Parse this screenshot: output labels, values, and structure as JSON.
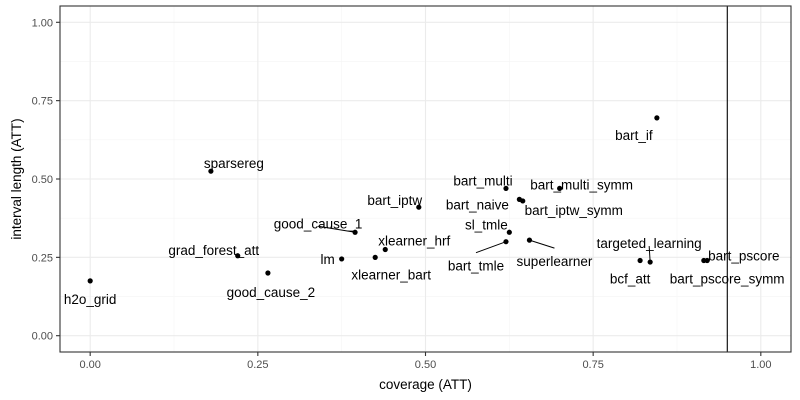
{
  "chart_data": {
    "type": "scatter",
    "xlabel": "coverage (ATT)",
    "ylabel": "interval length (ATT)",
    "xlim": [
      -0.045,
      1.045
    ],
    "ylim": [
      -0.052,
      1.052
    ],
    "x_ticks": [
      0.0,
      0.25,
      0.5,
      0.75,
      1.0
    ],
    "x_tick_labels": [
      "0.00",
      "0.25",
      "0.50",
      "0.75",
      "1.00"
    ],
    "y_ticks": [
      0.0,
      0.25,
      0.5,
      0.75,
      1.0
    ],
    "y_tick_labels": [
      "0.00",
      "0.25",
      "0.50",
      "0.75",
      "1.00"
    ],
    "grid": true,
    "reference_line": {
      "x": 0.95
    },
    "points": [
      {
        "label": "h2o_grid",
        "x": 0.0,
        "y": 0.175
      },
      {
        "label": "sparsereg",
        "x": 0.18,
        "y": 0.525
      },
      {
        "label": "grad_forest_att",
        "x": 0.22,
        "y": 0.255
      },
      {
        "label": "good_cause_2",
        "x": 0.265,
        "y": 0.2
      },
      {
        "label": "lm",
        "x": 0.375,
        "y": 0.245
      },
      {
        "label": "good_cause_1",
        "x": 0.395,
        "y": 0.33
      },
      {
        "label": "xlearner_bart",
        "x": 0.425,
        "y": 0.25
      },
      {
        "label": "xlearner_hrf",
        "x": 0.44,
        "y": 0.275
      },
      {
        "label": "bart_iptw",
        "x": 0.49,
        "y": 0.41
      },
      {
        "label": "bart_tmle",
        "x": 0.62,
        "y": 0.3
      },
      {
        "label": "bart_multi",
        "x": 0.62,
        "y": 0.47
      },
      {
        "label": "sl_tmle",
        "x": 0.625,
        "y": 0.33
      },
      {
        "label": "bart_naive",
        "x": 0.64,
        "y": 0.435
      },
      {
        "label": "bart_iptw_symm",
        "x": 0.645,
        "y": 0.43
      },
      {
        "label": "superlearner",
        "x": 0.655,
        "y": 0.305
      },
      {
        "label": "bart_multi_symm",
        "x": 0.7,
        "y": 0.47
      },
      {
        "label": "bcf_att",
        "x": 0.82,
        "y": 0.24
      },
      {
        "label": "targeted_learning",
        "x": 0.835,
        "y": 0.235
      },
      {
        "label": "bart_if",
        "x": 0.845,
        "y": 0.695
      },
      {
        "label": "bart_pscore",
        "x": 0.915,
        "y": 0.24
      },
      {
        "label": "bart_pscore_symm",
        "x": 0.92,
        "y": 0.24
      }
    ]
  }
}
